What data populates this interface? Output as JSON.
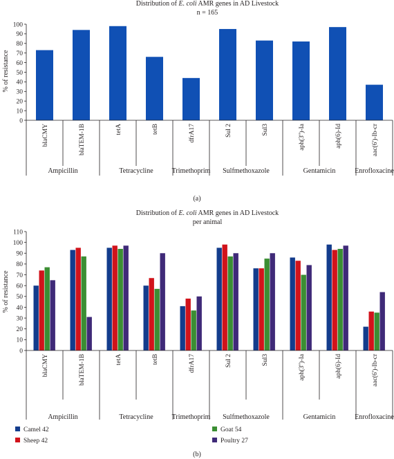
{
  "chart_data": [
    {
      "type": "bar",
      "panel_label": "(a)",
      "title": "Distribution of E. coli AMR genes in AD Livestock",
      "title_parts": {
        "before": "Distribution of ",
        "italic": "E. coli",
        "after": " AMR genes in AD Livestock"
      },
      "subtitle": "n = 165",
      "xlabel": "",
      "ylabel": "% of resistance",
      "ylim": [
        0,
        100
      ],
      "yticks": [
        0,
        10,
        20,
        30,
        40,
        50,
        60,
        70,
        80,
        90,
        100
      ],
      "grid": false,
      "categories": [
        "blaCMY",
        "blaTEM-1B",
        "tetA",
        "tetB",
        "dfrA17",
        "Sul 2",
        "Sul3",
        "aph(3'')-Ia",
        "aph(6)-Id",
        "aac(6')-Ib-cr"
      ],
      "values": [
        73,
        94,
        98,
        66,
        44,
        95,
        83,
        82,
        97,
        37
      ],
      "groups": [
        {
          "label": "Ampicillin",
          "count": 2
        },
        {
          "label": "Tetracycline",
          "count": 2
        },
        {
          "label": "Trimethoprim",
          "count": 1
        },
        {
          "label": "Sulfmethoxazole",
          "count": 2
        },
        {
          "label": "Gentamicin",
          "count": 2
        },
        {
          "label": "Enrofloxacine",
          "count": 1
        }
      ],
      "colors": {
        "bar": "#1050b4"
      }
    },
    {
      "type": "bar",
      "panel_label": "(b)",
      "title": "Distribution of E. coli AMR genes in AD Livestock per animal",
      "title_parts": {
        "before": "Distribution of ",
        "italic": "E. coli",
        "after": " AMR genes in AD Livestock"
      },
      "subtitle": "per animal",
      "xlabel": "",
      "ylabel": "% of resistance",
      "ylim": [
        0,
        110
      ],
      "yticks": [
        0,
        10,
        20,
        30,
        40,
        50,
        60,
        70,
        80,
        90,
        100,
        110
      ],
      "grid": false,
      "legend": "bottom",
      "categories": [
        "blaCMY",
        "blaTEM-1B",
        "tetA",
        "tetB",
        "dfrA17",
        "Sul 2",
        "Sul3",
        "aph(3'')-Ia",
        "aph(6)-Id",
        "aac(6')-Ib-cr"
      ],
      "series": [
        {
          "name": "Camel 42",
          "color": "#133c8c",
          "values": [
            60,
            93,
            95,
            60,
            41,
            95,
            76,
            86,
            98,
            22
          ]
        },
        {
          "name": "Sheep 42",
          "color": "#d1131b",
          "values": [
            74,
            95,
            97,
            67,
            48,
            98,
            76,
            83,
            93,
            36
          ]
        },
        {
          "name": "Goat 54",
          "color": "#3b8e33",
          "values": [
            77,
            87,
            94,
            57,
            37,
            87,
            85,
            70,
            94,
            35
          ]
        },
        {
          "name": "Poultry 27",
          "color": "#3f2a78",
          "values": [
            65,
            31,
            97,
            90,
            50,
            90,
            90,
            79,
            97,
            54
          ]
        }
      ],
      "groups": [
        {
          "label": "Ampicillin",
          "count": 2
        },
        {
          "label": "Tetracycline",
          "count": 2
        },
        {
          "label": "Trimethoprim",
          "count": 1
        },
        {
          "label": "Sulfmethoxazole",
          "count": 2
        },
        {
          "label": "Gentamicin",
          "count": 2
        },
        {
          "label": "Enrofloxacine",
          "count": 1
        }
      ]
    }
  ]
}
